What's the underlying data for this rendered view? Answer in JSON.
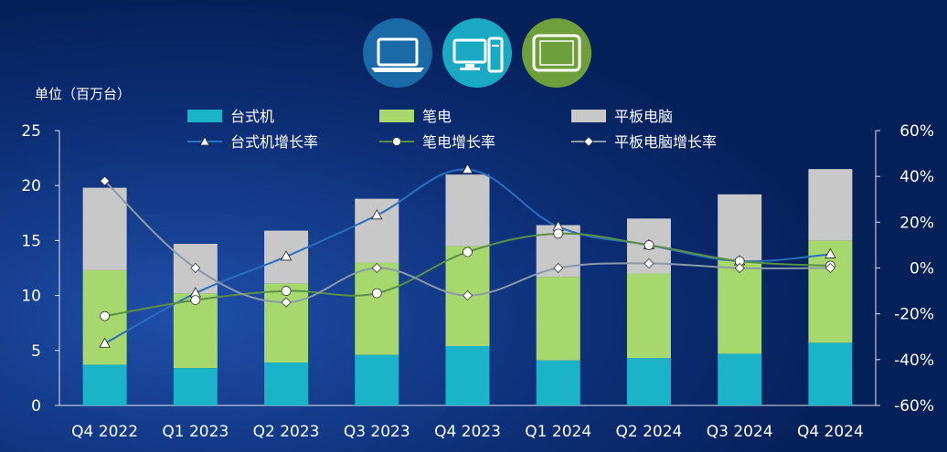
{
  "chart_data": {
    "type": "bar",
    "stacked": true,
    "unit_label": "单位（百万台）",
    "categories": [
      "Q4 2022",
      "Q1 2023",
      "Q2 2023",
      "Q3 2023",
      "Q4 2023",
      "Q1 2024",
      "Q2 2024",
      "Q3 2024",
      "Q4 2024"
    ],
    "ylim": [
      0,
      25
    ],
    "y_ticks": [
      "0",
      "5",
      "10",
      "15",
      "20",
      "25"
    ],
    "y2lim": [
      -60,
      60
    ],
    "y2_ticks": [
      "-60%",
      "-40%",
      "-20%",
      "0%",
      "20%",
      "40%",
      "60%"
    ],
    "series": [
      {
        "name": "台式机",
        "color": "#1ab3c8",
        "values": [
          3.7,
          3.4,
          3.9,
          4.6,
          5.4,
          4.1,
          4.3,
          4.7,
          5.7
        ]
      },
      {
        "name": "笔电",
        "color": "#a6d86e",
        "values": [
          8.6,
          6.8,
          7.2,
          8.4,
          9.1,
          7.6,
          7.7,
          8.5,
          9.3
        ]
      },
      {
        "name": "平板电脑",
        "color": "#c8c8c8",
        "values": [
          7.5,
          4.5,
          4.8,
          5.8,
          6.5,
          4.7,
          5.0,
          6.0,
          6.5
        ]
      }
    ],
    "line_series": [
      {
        "name": "台式机增长率",
        "marker": "triangle",
        "values": [
          -33,
          -11,
          5,
          23,
          43,
          18,
          10,
          3,
          6
        ]
      },
      {
        "name": "笔电增长率",
        "marker": "circle",
        "values": [
          -21,
          -14,
          -10,
          -11,
          7,
          15,
          10,
          3,
          1
        ]
      },
      {
        "name": "平板电脑增长率",
        "marker": "diamond",
        "values": [
          38,
          0,
          -15,
          0,
          -12,
          0,
          2,
          0,
          0
        ]
      }
    ],
    "legend_position": "top"
  },
  "icons": [
    {
      "name": "laptop-icon",
      "color": "#1a6aa8"
    },
    {
      "name": "desktop-icon",
      "color": "#19a9c3"
    },
    {
      "name": "tablet-icon",
      "color": "#6f9f3a"
    }
  ]
}
